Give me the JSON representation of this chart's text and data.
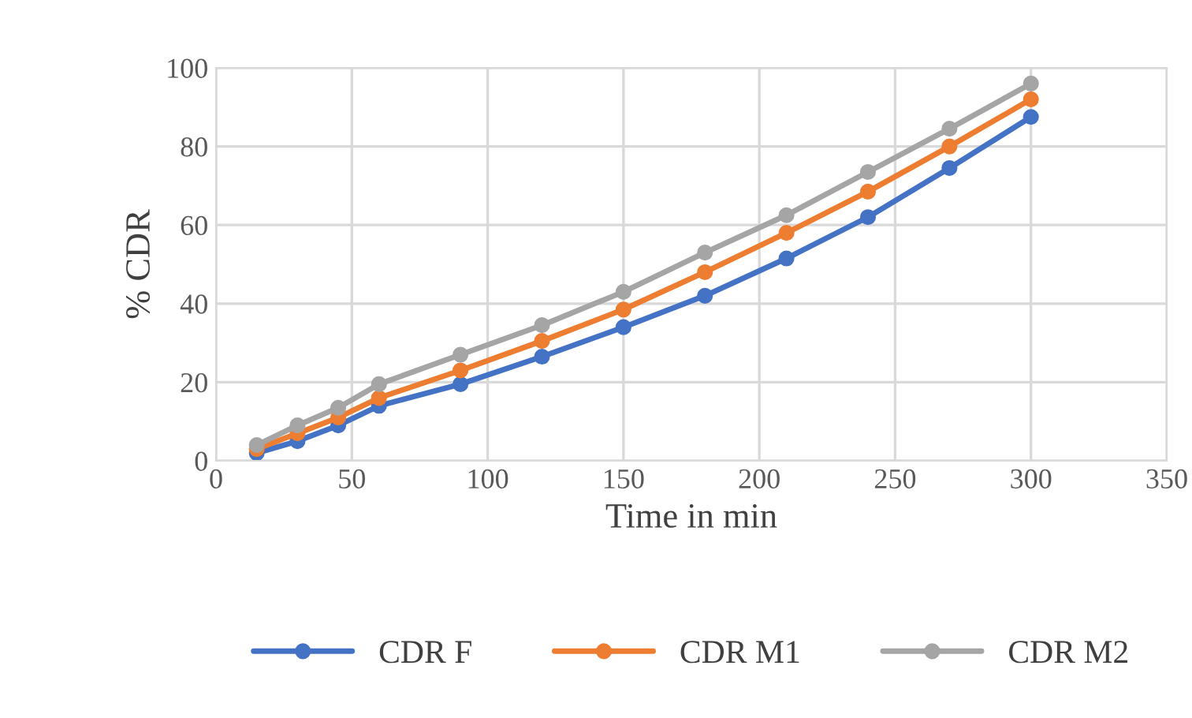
{
  "chart_data": {
    "type": "line",
    "xlabel": "Time in min",
    "ylabel": "% CDR",
    "x": [
      15,
      30,
      45,
      60,
      90,
      120,
      150,
      180,
      210,
      240,
      270,
      300
    ],
    "series": [
      {
        "name": "CDR F",
        "color": "#4472c4",
        "values": [
          2,
          5,
          9,
          14,
          19.5,
          26.5,
          34,
          42,
          51.5,
          62,
          74.5,
          87.5
        ]
      },
      {
        "name": "CDR M1",
        "color": "#ed7d31",
        "values": [
          3,
          7,
          11,
          16,
          23,
          30.5,
          38.5,
          48,
          58,
          68.5,
          80,
          92
        ]
      },
      {
        "name": "CDR M2",
        "color": "#a5a5a5",
        "values": [
          4,
          9,
          13.5,
          19.5,
          27,
          34.5,
          43,
          53,
          62.5,
          73.5,
          84.5,
          96
        ]
      }
    ],
    "xlim": [
      0,
      350
    ],
    "xticks": [
      0,
      50,
      100,
      150,
      200,
      250,
      300,
      350
    ],
    "ylim": [
      0,
      100
    ],
    "yticks": [
      0,
      20,
      40,
      60,
      80,
      100
    ],
    "grid": true,
    "legend": "bottom",
    "marker": "circle",
    "line_style": "solid"
  }
}
